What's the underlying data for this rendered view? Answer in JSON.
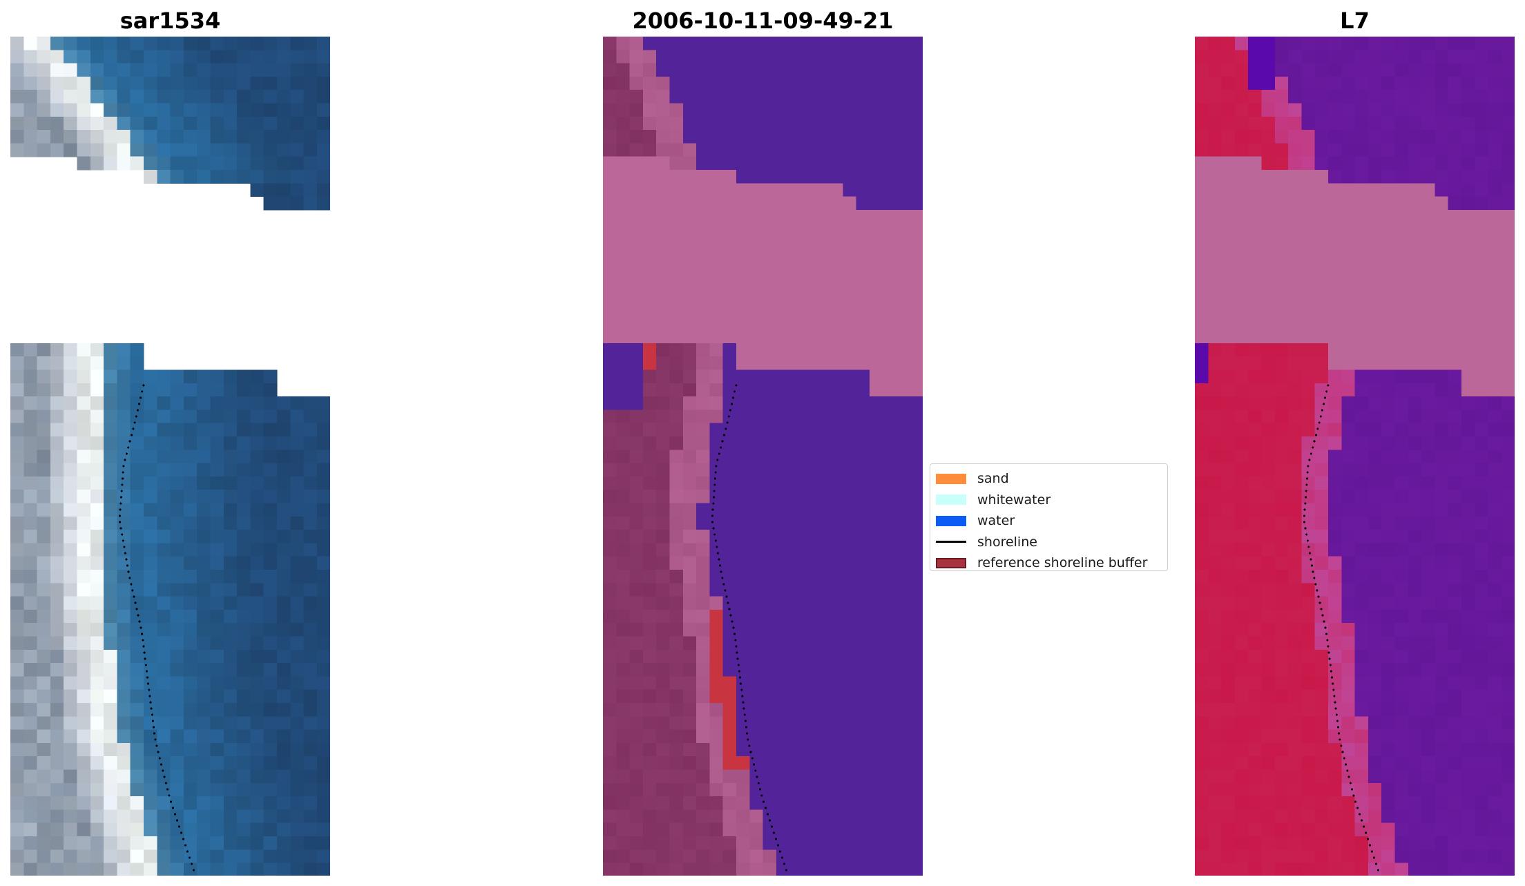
{
  "panels": [
    {
      "title": "sar1534",
      "kind": "rgb"
    },
    {
      "title": "2006-10-11-09-49-21",
      "kind": "classified"
    },
    {
      "title": "L7",
      "kind": "mndwi"
    }
  ],
  "legend": {
    "items": [
      {
        "label": "sand",
        "type": "patch",
        "color": "#ff8c3a"
      },
      {
        "label": "whitewater",
        "type": "patch",
        "color": "#c8fffa"
      },
      {
        "label": "water",
        "type": "patch",
        "color": "#0b5cf5"
      },
      {
        "label": "shoreline",
        "type": "line",
        "color": "#000000"
      },
      {
        "label": "reference shoreline buffer",
        "type": "patch",
        "color": "#a8323e",
        "edge": "#6e1a22"
      }
    ]
  },
  "colors": {
    "water_rgb": "#214a78",
    "water_rgb_near": "#2a6a9c",
    "beach_white": "#e8ecf0",
    "land_gray": "#6f7e92",
    "cloud_mask": "#bb6799",
    "water_class": "#53239a",
    "land_class": "#8c3a6c",
    "buffer_red": "#c8343f",
    "mndwi_red": "#c9194a",
    "mndwi_purple": "#6a1a9e",
    "shoreline": "#000000"
  }
}
